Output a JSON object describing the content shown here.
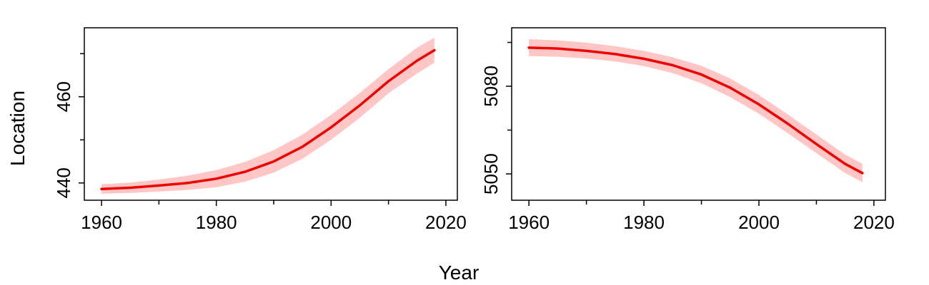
{
  "figure": {
    "xlabel": "Year",
    "ylabel": "Location"
  },
  "colors": {
    "line": "#ee0000",
    "band": "#ffc6c6"
  },
  "chart_data": [
    {
      "type": "line",
      "title": "",
      "xlabel": "Year",
      "ylabel": "Location",
      "xlim": [
        1957,
        2022
      ],
      "ylim": [
        436,
        476
      ],
      "x_ticks": [
        1960,
        1980,
        2000,
        2020
      ],
      "x_minor_ticks": [
        1970,
        1990,
        2010
      ],
      "y_ticks": [
        440,
        460
      ],
      "y_minor_ticks": [
        450,
        470
      ],
      "grid": false,
      "series": [
        {
          "x": [
            1960,
            1965,
            1970,
            1975,
            1980,
            1985,
            1990,
            1995,
            2000,
            2005,
            2010,
            2015,
            2018
          ],
          "y": [
            438.6,
            438.9,
            439.4,
            440.0,
            441.0,
            442.6,
            445.0,
            448.4,
            452.9,
            458.0,
            463.6,
            468.4,
            470.8
          ],
          "lower": [
            437.5,
            437.7,
            438.0,
            438.4,
            439.0,
            440.3,
            442.4,
            445.6,
            450.0,
            455.1,
            460.8,
            465.4,
            467.9
          ],
          "upper": [
            439.7,
            440.1,
            440.8,
            441.7,
            443.0,
            444.9,
            447.6,
            451.2,
            455.8,
            460.9,
            466.4,
            471.4,
            473.7
          ]
        }
      ]
    },
    {
      "type": "line",
      "title": "",
      "xlabel": "Year",
      "ylabel": "",
      "xlim": [
        1957,
        2022
      ],
      "ylim": [
        5041,
        5100
      ],
      "x_ticks": [
        1960,
        1980,
        2000,
        2020
      ],
      "x_minor_ticks": [
        1970,
        1990,
        2010
      ],
      "y_ticks": [
        5050,
        5080
      ],
      "y_minor_ticks": [
        5065,
        5095
      ],
      "grid": false,
      "series": [
        {
          "x": [
            1960,
            1965,
            1970,
            1975,
            1980,
            1985,
            1990,
            1995,
            2000,
            2005,
            2010,
            2015,
            2018
          ],
          "y": [
            5093.2,
            5092.9,
            5092.1,
            5091.0,
            5089.4,
            5087.2,
            5084.0,
            5079.5,
            5073.8,
            5067.2,
            5060.2,
            5053.4,
            5050.3
          ],
          "lower": [
            5090.3,
            5090.1,
            5089.5,
            5088.5,
            5086.9,
            5084.5,
            5081.0,
            5076.3,
            5070.6,
            5064.0,
            5057.1,
            5050.3,
            5047.2
          ],
          "upper": [
            5096.1,
            5095.7,
            5094.9,
            5093.7,
            5092.1,
            5089.9,
            5087.0,
            5082.7,
            5077.0,
            5070.4,
            5063.5,
            5056.6,
            5053.5
          ]
        }
      ]
    }
  ]
}
